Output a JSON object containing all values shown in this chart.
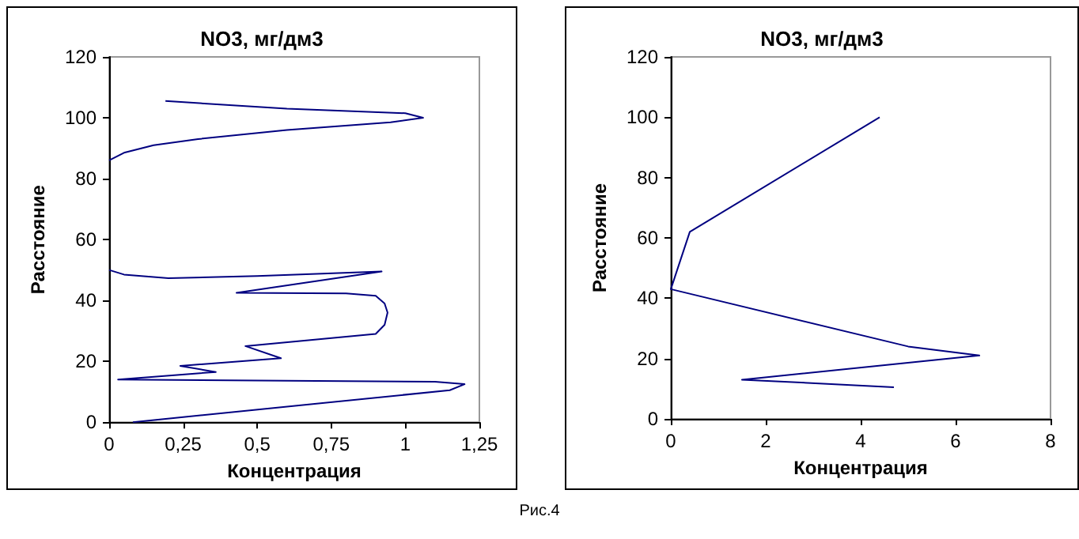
{
  "chart_data": [
    {
      "type": "line",
      "title": "NO3, мг/дм3",
      "xlabel": "Концентрация",
      "ylabel": "Расстояние",
      "series": [
        {
          "color": "#000080",
          "x": [
            0.08,
            1.15,
            1.2,
            1.1,
            0.03,
            0.36,
            0.24,
            0.58,
            0.46,
            0.9,
            0.93,
            0.94,
            0.93,
            0.9,
            0.8,
            0.43,
            0.92,
            0.5,
            0.2,
            0.05,
            0,
            null,
            0,
            0.05,
            0.15,
            0.3,
            0.6,
            0.95,
            1.06,
            1.0,
            0.6,
            0.19
          ],
          "values": [
            0,
            10.5,
            12.5,
            13.3,
            14,
            16.5,
            18.5,
            21,
            25,
            29,
            32,
            36,
            39,
            41.5,
            42.3,
            42.5,
            49.5,
            48,
            47.3,
            48.5,
            50,
            null,
            86,
            88.5,
            91,
            93,
            96,
            98.5,
            100,
            101.5,
            103,
            105.5
          ]
        }
      ],
      "xlim": [
        0,
        1.25
      ],
      "xticks": [
        0,
        {
          "value": 0.25,
          "label": "0,25"
        },
        {
          "value": 0.5,
          "label": "0,5"
        },
        {
          "value": 0.75,
          "label": "0,75"
        },
        1,
        {
          "value": 1.25,
          "label": "1,25"
        }
      ],
      "ylim": [
        0,
        120
      ],
      "yticks": [
        0,
        20,
        40,
        60,
        80,
        100,
        120
      ],
      "grid": false,
      "marker": "none",
      "line_style": "solid"
    },
    {
      "type": "line",
      "title": "NO3, мг/дм3",
      "xlabel": "Концентрация",
      "ylabel": "Расстояние",
      "series": [
        {
          "color": "#000080",
          "x": [
            4.7,
            1.5,
            6.5,
            5,
            0,
            0.4,
            4.4
          ],
          "values": [
            10.5,
            13,
            21,
            24,
            43,
            62,
            100
          ]
        }
      ],
      "xlim": [
        0,
        8
      ],
      "xticks": [
        0,
        2,
        4,
        6,
        8
      ],
      "ylim": [
        0,
        120
      ],
      "yticks": [
        0,
        20,
        40,
        60,
        80,
        100,
        120
      ],
      "grid": false,
      "marker": "none",
      "line_style": "solid",
      "annotations": [
        "Рис.4"
      ]
    }
  ]
}
